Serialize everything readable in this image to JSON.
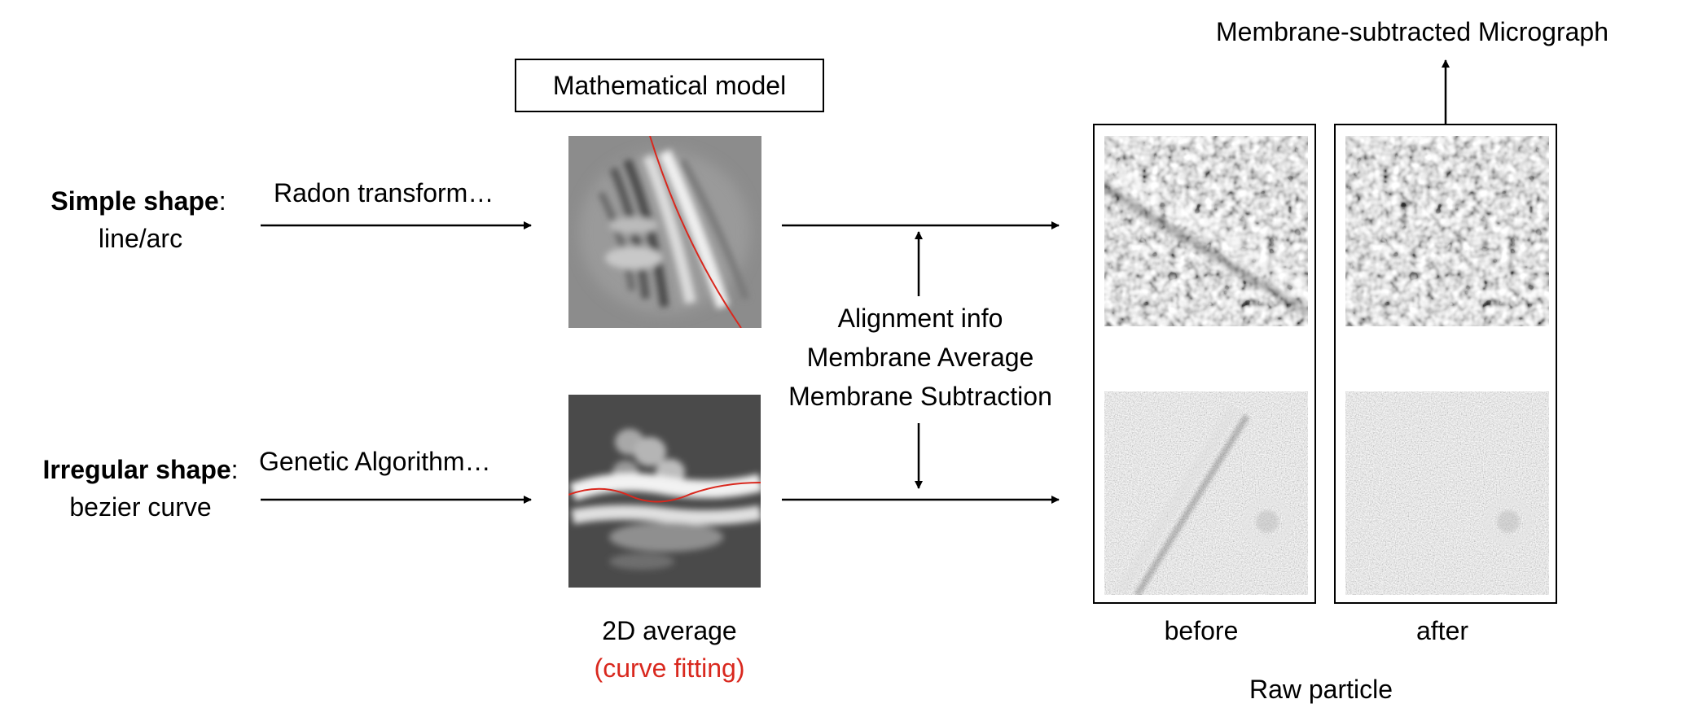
{
  "model_box": {
    "label": "Mathematical model"
  },
  "top_output": {
    "label": "Membrane-subtracted Micrograph"
  },
  "simple": {
    "title": "Simple shape",
    "colon": ":",
    "sub": "line/arc",
    "method": "Radon transform…"
  },
  "irregular": {
    "title": "Irregular shape",
    "colon": ":",
    "sub": "bezier curve",
    "method": "Genetic Algorithm…"
  },
  "steps": {
    "line1": "Alignment info",
    "line2": "Membrane Average",
    "line3": "Membrane Subtraction"
  },
  "average": {
    "label": "2D average",
    "note": "(curve fitting)"
  },
  "particles": {
    "before": "before",
    "after": "after",
    "group": "Raw particle"
  },
  "colors": {
    "fit_curve": "#d9281e",
    "note": "#d9281e",
    "frame": "#000000"
  }
}
